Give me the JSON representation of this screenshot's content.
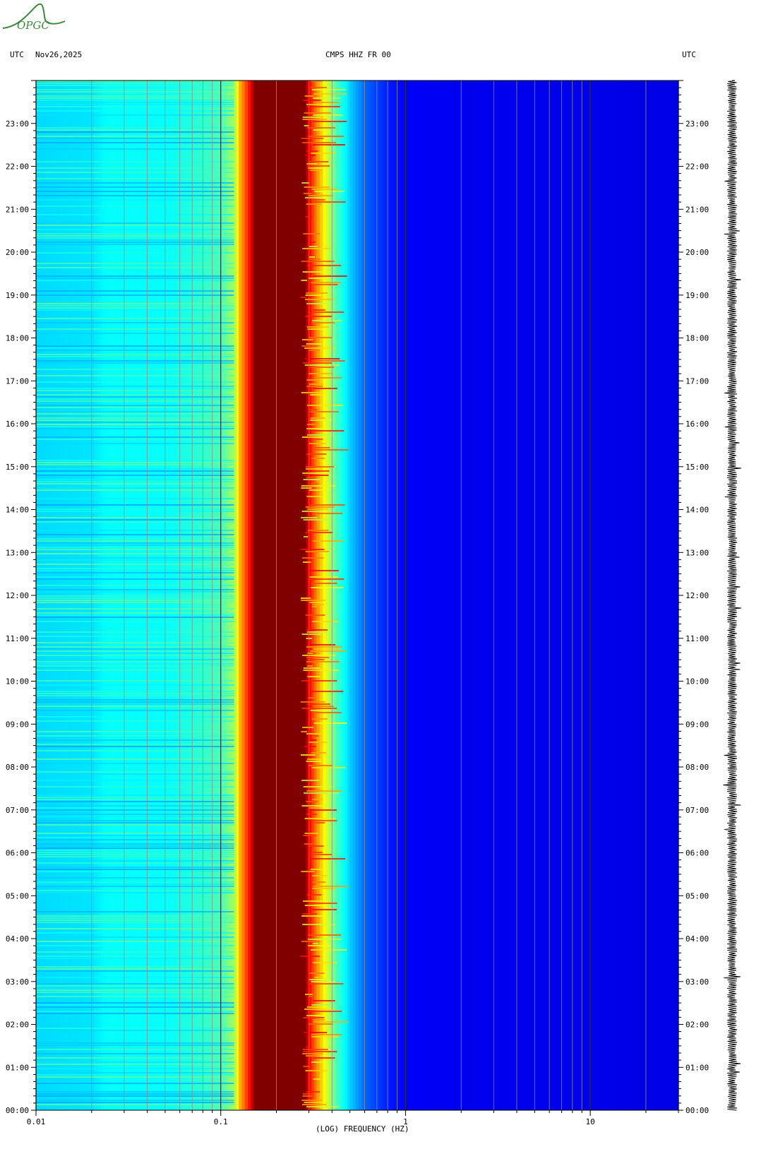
{
  "logo": {
    "text": "OPGC"
  },
  "header": {
    "left_utc": "UTC",
    "date": "Nov26,2025",
    "station": "CMPS HHZ FR 00",
    "right_utc": "UTC"
  },
  "chart_data": {
    "type": "heatmap",
    "title": "CMPS HHZ FR 00",
    "xlabel": "(LOG) FREQUENCY (HZ)",
    "x_scale": "log",
    "xlim": [
      0.01,
      30
    ],
    "x_ticks": [
      {
        "value": 0.01,
        "label": "0.01"
      },
      {
        "value": 0.1,
        "label": "0.1"
      },
      {
        "value": 1,
        "label": "1"
      },
      {
        "value": 10,
        "label": "10"
      }
    ],
    "ylabel": "UTC",
    "ylim_hours": [
      0,
      24
    ],
    "y_ticks": [
      {
        "hour": 0,
        "label": "00:00"
      },
      {
        "hour": 1,
        "label": "01:00"
      },
      {
        "hour": 2,
        "label": "02:00"
      },
      {
        "hour": 3,
        "label": "03:00"
      },
      {
        "hour": 4,
        "label": "04:00"
      },
      {
        "hour": 5,
        "label": "05:00"
      },
      {
        "hour": 6,
        "label": "06:00"
      },
      {
        "hour": 7,
        "label": "07:00"
      },
      {
        "hour": 8,
        "label": "08:00"
      },
      {
        "hour": 9,
        "label": "09:00"
      },
      {
        "hour": 10,
        "label": "10:00"
      },
      {
        "hour": 11,
        "label": "11:00"
      },
      {
        "hour": 12,
        "label": "12:00"
      },
      {
        "hour": 13,
        "label": "13:00"
      },
      {
        "hour": 14,
        "label": "14:00"
      },
      {
        "hour": 15,
        "label": "15:00"
      },
      {
        "hour": 16,
        "label": "16:00"
      },
      {
        "hour": 17,
        "label": "17:00"
      },
      {
        "hour": 18,
        "label": "18:00"
      },
      {
        "hour": 19,
        "label": "19:00"
      },
      {
        "hour": 20,
        "label": "20:00"
      },
      {
        "hour": 21,
        "label": "21:00"
      },
      {
        "hour": 22,
        "label": "22:00"
      },
      {
        "hour": 23,
        "label": "23:00"
      }
    ],
    "colormap": "jet",
    "spectral_profile": [
      {
        "freq": 0.01,
        "level": 0.34
      },
      {
        "freq": 0.02,
        "level": 0.35
      },
      {
        "freq": 0.024,
        "level": 0.38
      },
      {
        "freq": 0.05,
        "level": 0.38
      },
      {
        "freq": 0.07,
        "level": 0.41
      },
      {
        "freq": 0.1,
        "level": 0.45
      },
      {
        "freq": 0.118,
        "level": 0.55
      },
      {
        "freq": 0.125,
        "level": 0.7
      },
      {
        "freq": 0.14,
        "level": 0.86
      },
      {
        "freq": 0.15,
        "level": 1.0
      },
      {
        "freq": 0.2,
        "level": 1.0
      },
      {
        "freq": 0.28,
        "level": 1.0
      },
      {
        "freq": 0.3,
        "level": 0.86
      },
      {
        "freq": 0.33,
        "level": 0.72
      },
      {
        "freq": 0.37,
        "level": 0.58
      },
      {
        "freq": 0.42,
        "level": 0.44
      },
      {
        "freq": 0.5,
        "level": 0.32
      },
      {
        "freq": 0.6,
        "level": 0.22
      },
      {
        "freq": 0.8,
        "level": 0.15
      },
      {
        "freq": 1,
        "level": 0.12
      },
      {
        "freq": 2,
        "level": 0.11
      },
      {
        "freq": 30,
        "level": 0.1
      }
    ],
    "trace": {
      "type": "waveform",
      "description_label": ""
    }
  },
  "colors": {
    "background": "#ffffff",
    "axis": "#000000",
    "gridline_minor": "#8c8c8c",
    "gridline_major": "#303030",
    "logo": "#3c8a3c"
  }
}
